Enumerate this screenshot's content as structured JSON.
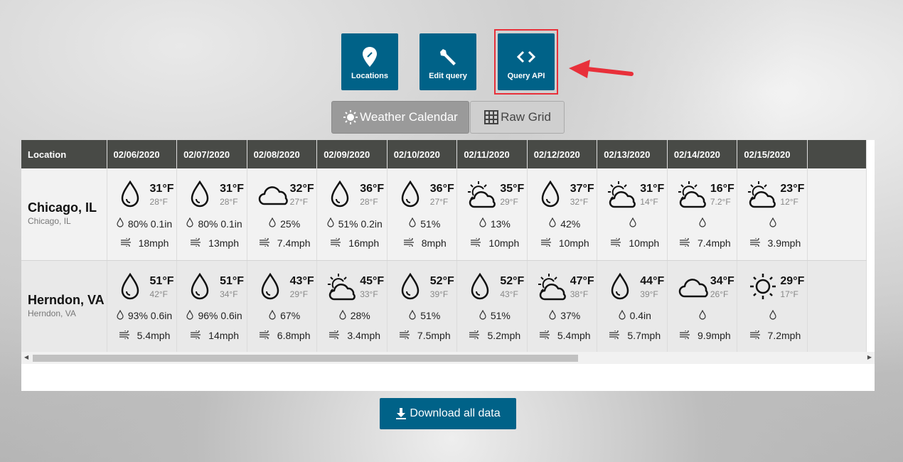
{
  "toolbar": {
    "locations": "Locations",
    "edit_query": "Edit query",
    "query_api": "Query API"
  },
  "view_tabs": {
    "calendar": "Weather Calendar",
    "raw": "Raw Grid",
    "active": "calendar"
  },
  "table": {
    "location_header": "Location",
    "dates": [
      "02/06/2020",
      "02/07/2020",
      "02/08/2020",
      "02/09/2020",
      "02/10/2020",
      "02/11/2020",
      "02/12/2020",
      "02/13/2020",
      "02/14/2020",
      "02/15/2020"
    ],
    "rows": [
      {
        "name": "Chicago, IL",
        "sub": "Chicago, IL",
        "days": [
          {
            "icon": "rain",
            "hi": "31°F",
            "lo": "28°F",
            "precip": "80% 0.1in",
            "wind": "18mph"
          },
          {
            "icon": "rain",
            "hi": "31°F",
            "lo": "28°F",
            "precip": "80% 0.1in",
            "wind": "13mph"
          },
          {
            "icon": "cloudy",
            "hi": "32°F",
            "lo": "27°F",
            "precip": "25%",
            "wind": "7.4mph"
          },
          {
            "icon": "rain",
            "hi": "36°F",
            "lo": "28°F",
            "precip": "51% 0.2in",
            "wind": "16mph"
          },
          {
            "icon": "rain",
            "hi": "36°F",
            "lo": "27°F",
            "precip": "51%",
            "wind": "8mph"
          },
          {
            "icon": "partly-cloudy",
            "hi": "35°F",
            "lo": "29°F",
            "precip": "13%",
            "wind": "10mph"
          },
          {
            "icon": "rain",
            "hi": "37°F",
            "lo": "32°F",
            "precip": "42%",
            "wind": "10mph"
          },
          {
            "icon": "partly-cloudy",
            "hi": "31°F",
            "lo": "14°F",
            "precip": "",
            "wind": "10mph"
          },
          {
            "icon": "partly-cloudy",
            "hi": "16°F",
            "lo": "7.2°F",
            "precip": "",
            "wind": "7.4mph"
          },
          {
            "icon": "partly-cloudy",
            "hi": "23°F",
            "lo": "12°F",
            "precip": "",
            "wind": "3.9mph"
          }
        ]
      },
      {
        "name": "Herndon, VA",
        "sub": "Herndon, VA",
        "days": [
          {
            "icon": "rain",
            "hi": "51°F",
            "lo": "42°F",
            "precip": "93% 0.6in",
            "wind": "5.4mph"
          },
          {
            "icon": "rain",
            "hi": "51°F",
            "lo": "34°F",
            "precip": "96% 0.6in",
            "wind": "14mph"
          },
          {
            "icon": "rain",
            "hi": "43°F",
            "lo": "29°F",
            "precip": "67%",
            "wind": "6.8mph"
          },
          {
            "icon": "partly-cloudy",
            "hi": "45°F",
            "lo": "33°F",
            "precip": "28%",
            "wind": "3.4mph"
          },
          {
            "icon": "rain",
            "hi": "52°F",
            "lo": "39°F",
            "precip": "51%",
            "wind": "7.5mph"
          },
          {
            "icon": "rain",
            "hi": "52°F",
            "lo": "43°F",
            "precip": "51%",
            "wind": "5.2mph"
          },
          {
            "icon": "partly-cloudy",
            "hi": "47°F",
            "lo": "38°F",
            "precip": "37%",
            "wind": "5.4mph"
          },
          {
            "icon": "rain",
            "hi": "44°F",
            "lo": "39°F",
            "precip": "0.4in",
            "wind": "5.7mph"
          },
          {
            "icon": "cloudy",
            "hi": "34°F",
            "lo": "26°F",
            "precip": "",
            "wind": "9.9mph"
          },
          {
            "icon": "clear",
            "hi": "29°F",
            "lo": "17°F",
            "precip": "",
            "wind": "7.2mph"
          }
        ]
      }
    ]
  },
  "download": {
    "label": "Download all data"
  },
  "colors": {
    "brand": "#006288",
    "header": "#484a46",
    "highlight": "#e8303a"
  }
}
